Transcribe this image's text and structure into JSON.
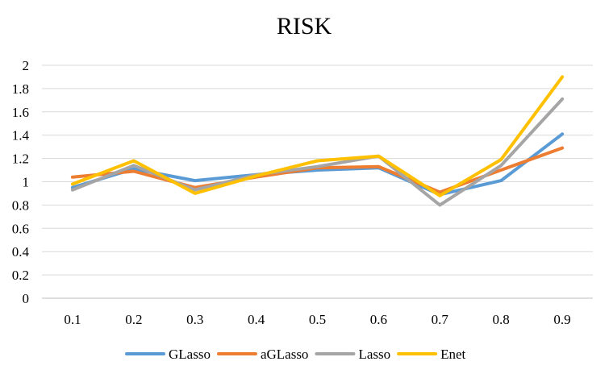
{
  "chart_data": {
    "type": "line",
    "title": "RISK",
    "xlabel": "",
    "ylabel": "",
    "categories": [
      "0.1",
      "0.2",
      "0.3",
      "0.4",
      "0.5",
      "0.6",
      "0.7",
      "0.8",
      "0.9"
    ],
    "ylim": [
      0,
      2
    ],
    "yticks": [
      "0",
      "0.2",
      "0.4",
      "0.6",
      "0.8",
      "1",
      "1.2",
      "1.4",
      "1.6",
      "1.8",
      "2"
    ],
    "grid": true,
    "legend_position": "bottom",
    "series": [
      {
        "name": "GLasso",
        "color": "#5B9BD5",
        "values": [
          0.95,
          1.11,
          1.01,
          1.06,
          1.1,
          1.12,
          0.89,
          1.01,
          1.41
        ]
      },
      {
        "name": "aGLasso",
        "color": "#ED7D31",
        "values": [
          1.04,
          1.09,
          0.95,
          1.04,
          1.12,
          1.13,
          0.91,
          1.1,
          1.29
        ]
      },
      {
        "name": "Lasso",
        "color": "#A5A5A5",
        "values": [
          0.93,
          1.14,
          0.93,
          1.06,
          1.13,
          1.22,
          0.8,
          1.14,
          1.71
        ]
      },
      {
        "name": "Enet",
        "color": "#FFC000",
        "values": [
          0.98,
          1.18,
          0.9,
          1.05,
          1.18,
          1.22,
          0.88,
          1.19,
          1.9
        ]
      }
    ]
  }
}
